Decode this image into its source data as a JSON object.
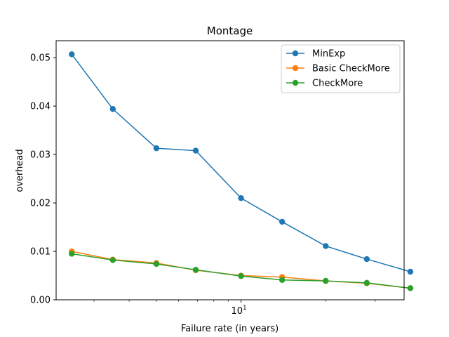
{
  "chart_data": {
    "type": "line",
    "title": "Montage",
    "xlabel": "Failure rate (in years)",
    "ylabel": "overhead",
    "xscale": "log",
    "xlim": [
      2.2,
      38
    ],
    "ylim": [
      0.0,
      0.0535
    ],
    "x": [
      2.5,
      3.5,
      5,
      6.9,
      10,
      14,
      20,
      28,
      40
    ],
    "x_major_ticks": [
      {
        "value": 10,
        "base": "10",
        "exp": "1"
      }
    ],
    "x_minor_ticks": [
      3,
      4,
      5,
      6,
      7,
      8,
      9,
      20,
      30
    ],
    "y_ticks": [
      0.0,
      0.01,
      0.02,
      0.03,
      0.04,
      0.05
    ],
    "y_tick_labels": [
      "0.00",
      "0.01",
      "0.02",
      "0.03",
      "0.04",
      "0.05"
    ],
    "legend_position": "top-right",
    "grid": false,
    "series": [
      {
        "name": "MinExp",
        "color": "#1f77b4",
        "values": [
          0.0507,
          0.0394,
          0.0313,
          0.0308,
          0.021,
          0.0161,
          0.0111,
          0.0084,
          0.0058
        ]
      },
      {
        "name": "Basic CheckMore",
        "color": "#ff7f0e",
        "values": [
          0.01,
          0.0083,
          0.0076,
          0.0061,
          0.005,
          0.0047,
          0.0039,
          0.0034,
          0.0024
        ]
      },
      {
        "name": "CheckMore",
        "color": "#2ca02c",
        "values": [
          0.0095,
          0.0082,
          0.0074,
          0.0062,
          0.0049,
          0.0041,
          0.0039,
          0.0035,
          0.0024
        ]
      }
    ]
  }
}
